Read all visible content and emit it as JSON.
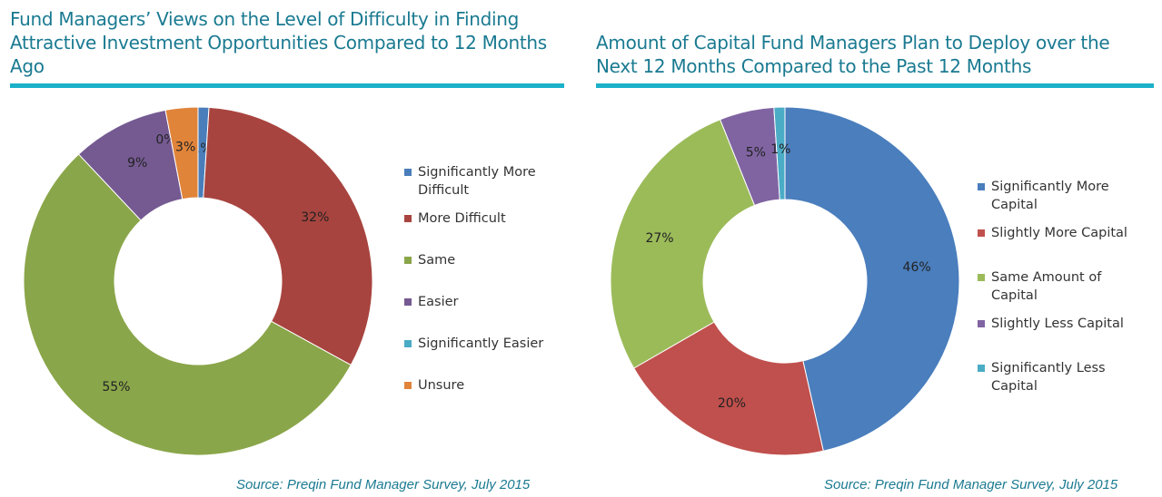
{
  "chart_data": [
    {
      "type": "pie",
      "donut": true,
      "title": "Fund Managers’ Views on the Level of Difficulty in Finding Attractive Investment Opportunities Compared to 12 Months Ago",
      "source": "Source: Preqin Fund Manager Survey, July 2015",
      "legend_position": "right",
      "categories": [
        "Significantly More Difficult",
        "More Difficult",
        "Same",
        "Easier",
        "Significantly Easier",
        "Unsure"
      ],
      "values": [
        1,
        32,
        55,
        9,
        0,
        3
      ],
      "labels": [
        "1%",
        "32%",
        "55%",
        "9%",
        "0%",
        "3%"
      ],
      "colors": [
        "#4a7ebb",
        "#a8443f",
        "#8aa64a",
        "#755a92",
        "#4aabc4",
        "#e0843a"
      ]
    },
    {
      "type": "pie",
      "donut": true,
      "title": "Amount of Capital Fund Managers Plan to Deploy over the Next 12 Months Compared to the Past 12 Months",
      "source": "Source: Preqin Fund Manager Survey, July 2015",
      "legend_position": "right",
      "categories": [
        "Significantly More Capital",
        "Slightly More Capital",
        "Same Amount of Capital",
        "Slightly Less Capital",
        "Significantly Less Capital"
      ],
      "values": [
        46,
        20,
        27,
        5,
        1
      ],
      "labels": [
        "46%",
        "20%",
        "27%",
        "5%",
        "1%"
      ],
      "colors": [
        "#4a7ebd",
        "#c0504d",
        "#9bbb59",
        "#8064a2",
        "#4bacc6"
      ]
    }
  ]
}
